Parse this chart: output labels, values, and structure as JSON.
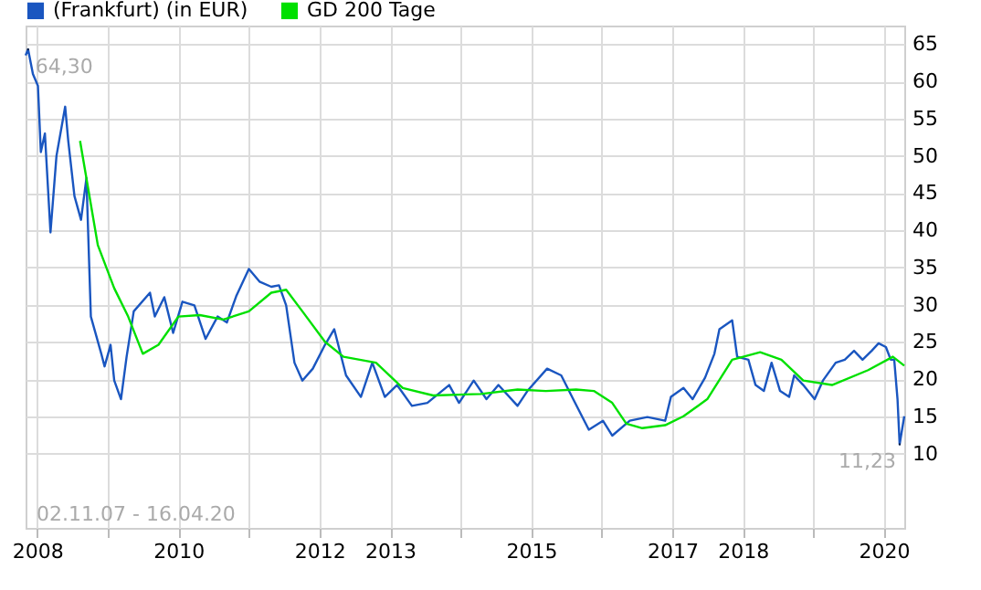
{
  "chart_data": {
    "type": "line",
    "series": [
      {
        "name": "(Frankfurt) (in EUR)",
        "color": "#1a56c0",
        "x": [
          "2007-11-02",
          "2007-11-15",
          "2007-12-10",
          "2008-01-05",
          "2008-01-20",
          "2008-02-10",
          "2008-03-10",
          "2008-04-10",
          "2008-05-25",
          "2008-06-10",
          "2008-07-12",
          "2008-08-15",
          "2008-09-12",
          "2008-10-05",
          "2008-11-28",
          "2008-12-15",
          "2009-01-15",
          "2009-02-03",
          "2009-03-10",
          "2009-04-08",
          "2009-05-15",
          "2009-08-07",
          "2009-09-01",
          "2009-10-20",
          "2009-12-05",
          "2010-01-22",
          "2010-03-25",
          "2010-05-22",
          "2010-07-23",
          "2010-09-09",
          "2010-10-27",
          "2011-01-01",
          "2011-02-25",
          "2011-04-27",
          "2011-06-06",
          "2011-07-13",
          "2011-08-25",
          "2011-10-05",
          "2011-11-28",
          "2012-01-30",
          "2012-03-18",
          "2012-05-18",
          "2012-08-03",
          "2012-10-01",
          "2012-12-05",
          "2013-02-06",
          "2013-04-24",
          "2013-07-13",
          "2013-11-03",
          "2013-12-24",
          "2014-03-10",
          "2014-05-15",
          "2014-07-16",
          "2014-10-23",
          "2014-12-13",
          "2015-03-25",
          "2015-06-06",
          "2015-08-07",
          "2015-10-27",
          "2016-01-08",
          "2016-02-25",
          "2016-05-26",
          "2016-08-25",
          "2016-11-25",
          "2016-12-25",
          "2017-02-28",
          "2017-04-16",
          "2017-06-20",
          "2017-08-07",
          "2017-09-02",
          "2017-11-07",
          "2017-12-03",
          "2018-01-30",
          "2018-03-08",
          "2018-04-20",
          "2018-05-30",
          "2018-07-13",
          "2018-08-29",
          "2018-09-24",
          "2018-11-10",
          "2019-01-08",
          "2019-02-20",
          "2019-04-27",
          "2019-06-13",
          "2019-07-31",
          "2019-09-13",
          "2019-10-30",
          "2019-12-05",
          "2020-01-12",
          "2020-02-06",
          "2020-02-24",
          "2020-03-12",
          "2020-03-23",
          "2020-04-16"
        ],
        "values": [
          63.5,
          64.3,
          61,
          59.4,
          50.5,
          53,
          39.7,
          50,
          56.6,
          52,
          44.6,
          41.4,
          47,
          28.4,
          23.4,
          21.7,
          24.6,
          19.8,
          17.3,
          23,
          29.1,
          31.6,
          28.4,
          31,
          26.2,
          30.4,
          29.9,
          25.4,
          28.4,
          27.6,
          31.1,
          34.8,
          33.1,
          32.4,
          32.6,
          29.9,
          22.2,
          19.8,
          21.4,
          24.6,
          26.7,
          20.5,
          17.6,
          22.2,
          17.6,
          19.2,
          16.4,
          16.8,
          19.2,
          16.8,
          19.8,
          17.3,
          19.2,
          16.4,
          18.4,
          21.4,
          20.5,
          17.3,
          13.2,
          14.4,
          12.4,
          14.4,
          14.9,
          14.4,
          17.6,
          18.8,
          17.3,
          20.2,
          23.4,
          26.7,
          27.9,
          23,
          22.6,
          19.2,
          18.4,
          22.2,
          18.4,
          17.6,
          20.5,
          19.2,
          17.3,
          19.8,
          22.2,
          22.6,
          23.8,
          22.6,
          23.8,
          24.8,
          24.3,
          22.6,
          22.6,
          17.3,
          11.23,
          15
        ]
      },
      {
        "name": "GD 200 Tage",
        "color": "#00e000",
        "x": [
          "2008-08-10",
          "2008-11-10",
          "2009-02-03",
          "2009-04-16",
          "2009-07-01",
          "2009-09-20",
          "2010-01-01",
          "2010-04-22",
          "2010-08-22",
          "2011-01-01",
          "2011-04-27",
          "2011-07-13",
          "2011-10-05",
          "2012-01-30",
          "2012-05-05",
          "2012-10-20",
          "2013-03-08",
          "2013-08-12",
          "2014-04-16",
          "2014-10-23",
          "2015-03-18",
          "2015-08-22",
          "2015-11-22",
          "2016-02-25",
          "2016-05-08",
          "2016-07-30",
          "2016-11-25",
          "2017-02-28",
          "2017-07-01",
          "2017-11-07",
          "2018-04-01",
          "2018-07-20",
          "2018-11-10",
          "2019-04-08",
          "2019-10-12",
          "2020-02-17",
          "2020-04-16"
        ],
        "values": [
          52,
          38,
          32.2,
          28.4,
          23.4,
          24.6,
          28.4,
          28.6,
          28,
          29.1,
          31.6,
          32,
          29.1,
          25,
          23,
          22.2,
          18.8,
          17.8,
          18,
          18.6,
          18.4,
          18.6,
          18.4,
          16.8,
          14,
          13.4,
          13.8,
          15,
          17.3,
          22.6,
          23.6,
          22.6,
          19.8,
          19.2,
          21.2,
          23,
          21.8
        ]
      }
    ],
    "xlim": [
      "2007-11-02",
      "2020-04-16"
    ],
    "xticks": [
      {
        "value": "2008",
        "label": "2008"
      },
      {
        "value": "2009",
        "label": null
      },
      {
        "value": "2010",
        "label": "2010"
      },
      {
        "value": "2011",
        "label": null
      },
      {
        "value": "2012",
        "label": "2012"
      },
      {
        "value": "2013",
        "label": "2013"
      },
      {
        "value": "2014",
        "label": null
      },
      {
        "value": "2015",
        "label": "2015"
      },
      {
        "value": "2016",
        "label": null
      },
      {
        "value": "2017",
        "label": "2017"
      },
      {
        "value": "2018",
        "label": "2018"
      },
      {
        "value": "2019",
        "label": null
      },
      {
        "value": "2020",
        "label": "2020"
      }
    ],
    "ylim": [
      0,
      67.5
    ],
    "yticks": [
      10,
      15,
      20,
      25,
      30,
      35,
      40,
      45,
      50,
      55,
      60,
      65
    ],
    "grid": true,
    "legend": "top left",
    "annotations": [
      {
        "text": "64,30",
        "x": "2007-11-15",
        "y": 64.3
      },
      {
        "text": "11,23",
        "x": "2020-03-23",
        "y": 11.23
      },
      "02.11.07 - 16.04.20"
    ]
  }
}
